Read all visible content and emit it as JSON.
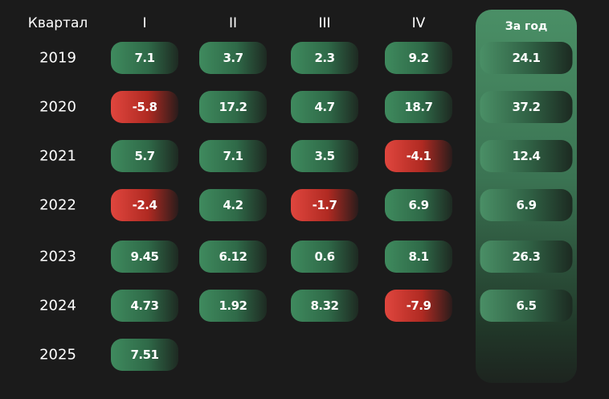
{
  "chart_data": {
    "type": "table",
    "header_label": "Квартал",
    "columns": [
      "I",
      "II",
      "III",
      "IV"
    ],
    "year_column": "За год",
    "rows": [
      {
        "year": "2019",
        "values": [
          7.1,
          3.7,
          2.3,
          9.2
        ],
        "total": 24.1
      },
      {
        "year": "2020",
        "values": [
          -5.8,
          17.2,
          4.7,
          18.7
        ],
        "total": 37.2
      },
      {
        "year": "2021",
        "values": [
          5.7,
          7.1,
          3.5,
          -4.1
        ],
        "total": 12.4
      },
      {
        "year": "2022",
        "values": [
          -2.4,
          4.2,
          -1.7,
          6.9
        ],
        "total": 6.9
      },
      {
        "year": "2023",
        "values": [
          9.45,
          6.12,
          0.6,
          8.1
        ],
        "total": 26.3
      },
      {
        "year": "2024",
        "values": [
          4.73,
          1.92,
          8.32,
          -7.9
        ],
        "total": 6.5
      },
      {
        "year": "2025",
        "values": [
          7.51,
          null,
          null,
          null
        ],
        "total": null
      }
    ],
    "colors": {
      "positive": "#3f8a5e",
      "negative": "#e0463e",
      "background": "#1b1b1b",
      "year_panel": "#4a8f66"
    }
  }
}
